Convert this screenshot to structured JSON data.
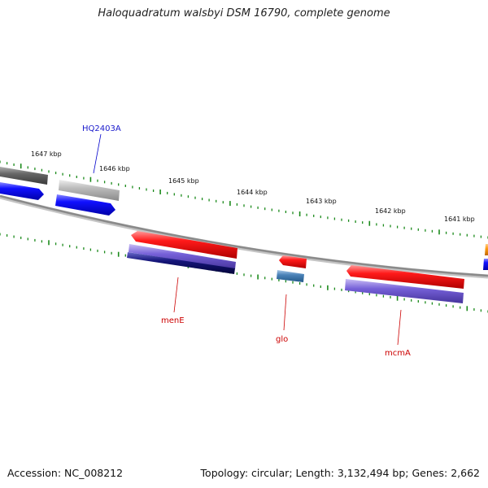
{
  "title": "Haloquadratum walsbyi DSM 16790, complete genome",
  "footer": {
    "accession_label": "Accession:",
    "accession_value": "NC_008212",
    "topology_label": "Topology:",
    "topology_value": "circular",
    "length_label": "Length:",
    "length_value": "3,132,494 bp",
    "genes_label": "Genes:",
    "genes_value": "2,662"
  },
  "kbp_ticks": [
    {
      "label": "1647 kbp"
    },
    {
      "label": "1646 kbp"
    },
    {
      "label": "1645 kbp"
    },
    {
      "label": "1644 kbp"
    },
    {
      "label": "1643 kbp"
    },
    {
      "label": "1642 kbp"
    },
    {
      "label": "1641 kbp"
    }
  ],
  "gene_labels": [
    {
      "name": "HQ2403A",
      "color": "#1a1acc"
    },
    {
      "name": "menE",
      "color": "#cc0000"
    },
    {
      "name": "glo",
      "color": "#cc0000"
    },
    {
      "name": "mcmA",
      "color": "#cc0000"
    }
  ],
  "colors": {
    "backbone": "#8a8a8a",
    "tick_marks": "#1b8a1b",
    "gene_red": "#ee0000",
    "gene_blue": "#0000ee",
    "gene_purple": "#6a55cc",
    "gene_navy": "#101070",
    "gene_steel": "#4a82b8",
    "gene_gray": "#666666",
    "gene_lightgray": "#b5b5b5",
    "gene_orange": "#ee8800"
  }
}
